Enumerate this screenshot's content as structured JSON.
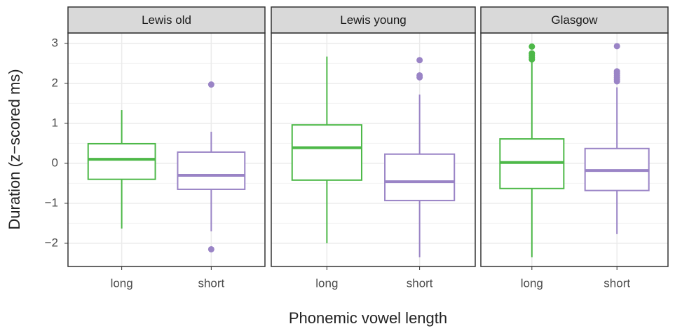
{
  "chart_data": [
    {
      "type": "box",
      "title": "Lewis old",
      "y_label": "Duration (z−scored ms)",
      "x_label": "Phonemic vowel length",
      "ylim": [
        -2.58,
        3.26
      ],
      "yticks": [
        {
          "value": -2,
          "label": "−2"
        },
        {
          "value": -1,
          "label": "−1"
        },
        0,
        1,
        2,
        3
      ],
      "grid": true,
      "categories": [
        "long",
        "short"
      ],
      "colors": [
        "#4db848",
        "#9a84c6"
      ],
      "boxes": [
        {
          "whislo": -1.63,
          "q1": -0.4,
          "med": 0.1,
          "q3": 0.49,
          "whishi": 1.33,
          "fliers": []
        },
        {
          "whislo": -1.7,
          "q1": -0.65,
          "med": -0.3,
          "q3": 0.28,
          "whishi": 0.79,
          "fliers": [
            1.97,
            -2.15
          ]
        }
      ]
    },
    {
      "type": "box",
      "title": "Lewis young",
      "categories": [
        "long",
        "short"
      ],
      "colors": [
        "#4db848",
        "#9a84c6"
      ],
      "boxes": [
        {
          "whislo": -2.0,
          "q1": -0.42,
          "med": 0.39,
          "q3": 0.96,
          "whishi": 2.67,
          "fliers": []
        },
        {
          "whislo": -2.35,
          "q1": -0.93,
          "med": -0.46,
          "q3": 0.23,
          "whishi": 1.72,
          "fliers": [
            2.58,
            2.2,
            2.15
          ]
        }
      ]
    },
    {
      "type": "box",
      "title": "Glasgow",
      "categories": [
        "long",
        "short"
      ],
      "colors": [
        "#4db848",
        "#9a84c6"
      ],
      "boxes": [
        {
          "whislo": -2.35,
          "q1": -0.63,
          "med": 0.02,
          "q3": 0.61,
          "whishi": 2.56,
          "fliers": [
            2.92,
            2.75,
            2.7,
            2.65,
            2.6
          ]
        },
        {
          "whislo": -1.77,
          "q1": -0.68,
          "med": -0.18,
          "q3": 0.37,
          "whishi": 1.9,
          "fliers": [
            2.93,
            2.3,
            2.25,
            2.2,
            2.15,
            2.1,
            2.05
          ]
        }
      ]
    }
  ]
}
